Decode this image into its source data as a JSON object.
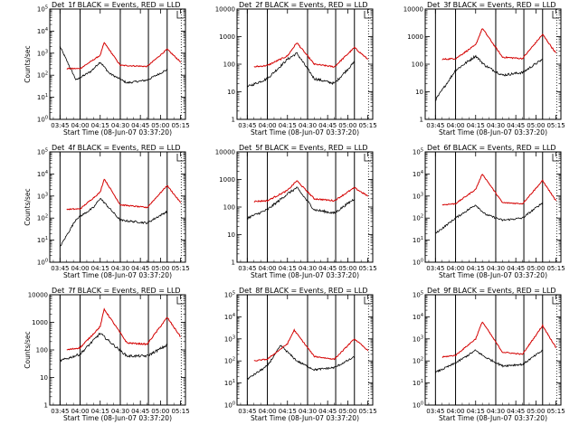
{
  "chart_data": [
    {
      "type": "line",
      "title": "Det_1f BLACK = Events, RED = LLD",
      "xlabel": "Start Time (08-Jun-07 03:37:20)",
      "ylabel": "Counts/sec",
      "y_ticks": [
        "10^0",
        "10^1",
        "10^2",
        "10^3",
        "10^4",
        "10^5"
      ],
      "ylim": [
        1,
        100000
      ],
      "x_ticks": [
        "03:45",
        "04:00",
        "04:15",
        "04:30",
        "04:45",
        "05:00",
        "05:15"
      ],
      "xlim": [
        "03:37:20",
        "05:18:40"
      ],
      "vlines": [
        "03:45",
        "04:00",
        "04:30",
        "04:51",
        "05:05"
      ],
      "y_scale": "log",
      "legend_mark": "top-right",
      "series": [
        {
          "name": "Events",
          "color": "#000000",
          "values": [
            {
              "x": "03:45",
              "y": 2000
            },
            {
              "x": "03:57",
              "y": 60
            },
            {
              "x": "04:08",
              "y": 150
            },
            {
              "x": "04:15",
              "y": 400
            },
            {
              "x": "04:22",
              "y": 120
            },
            {
              "x": "04:35",
              "y": 45
            },
            {
              "x": "04:50",
              "y": 60
            },
            {
              "x": "05:05",
              "y": 180
            }
          ]
        },
        {
          "name": "LLD",
          "color": "#d40000",
          "values": [
            {
              "x": "03:50",
              "y": 200
            },
            {
              "x": "04:00",
              "y": 200
            },
            {
              "x": "04:15",
              "y": 800
            },
            {
              "x": "04:18",
              "y": 3000
            },
            {
              "x": "04:30",
              "y": 280
            },
            {
              "x": "04:50",
              "y": 250
            },
            {
              "x": "05:05",
              "y": 1500
            },
            {
              "x": "05:15",
              "y": 400
            }
          ]
        }
      ]
    },
    {
      "type": "line",
      "title": "Det_2f BLACK = Events, RED = LLD",
      "xlabel": "Start Time (08-Jun-07 03:37:20)",
      "ylabel": "",
      "y_ticks": [
        "1",
        "10",
        "100",
        "1000",
        "10000"
      ],
      "ylim": [
        1,
        10000
      ],
      "x_ticks": [
        "03:45",
        "04:00",
        "04:15",
        "04:30",
        "04:45",
        "05:00",
        "05:15"
      ],
      "xlim": [
        "03:37:20",
        "05:18:40"
      ],
      "vlines": [
        "03:45",
        "04:00",
        "04:30",
        "04:51",
        "05:05"
      ],
      "y_scale": "log",
      "legend_mark": "top-right",
      "series": [
        {
          "name": "Events",
          "color": "#000000",
          "values": [
            {
              "x": "03:45",
              "y": 15
            },
            {
              "x": "04:00",
              "y": 30
            },
            {
              "x": "04:15",
              "y": 150
            },
            {
              "x": "04:22",
              "y": 250
            },
            {
              "x": "04:35",
              "y": 30
            },
            {
              "x": "04:50",
              "y": 20
            },
            {
              "x": "05:05",
              "y": 120
            }
          ]
        },
        {
          "name": "LLD",
          "color": "#d40000",
          "values": [
            {
              "x": "03:50",
              "y": 80
            },
            {
              "x": "04:00",
              "y": 90
            },
            {
              "x": "04:15",
              "y": 200
            },
            {
              "x": "04:22",
              "y": 600
            },
            {
              "x": "04:35",
              "y": 100
            },
            {
              "x": "04:50",
              "y": 80
            },
            {
              "x": "05:05",
              "y": 400
            },
            {
              "x": "05:15",
              "y": 150
            }
          ]
        }
      ]
    },
    {
      "type": "line",
      "title": "Det_3f BLACK = Events, RED = LLD",
      "xlabel": "Start Time (08-Jun-07 03:37:20)",
      "ylabel": "",
      "y_ticks": [
        "1",
        "10",
        "100",
        "1000",
        "10000"
      ],
      "ylim": [
        1,
        10000
      ],
      "x_ticks": [
        "03:45",
        "04:00",
        "04:15",
        "04:30",
        "04:45",
        "05:00",
        "05:15"
      ],
      "xlim": [
        "03:37:20",
        "05:18:40"
      ],
      "vlines": [
        "03:45",
        "04:00",
        "04:30",
        "04:51",
        "05:05"
      ],
      "y_scale": "log",
      "legend_mark": "top-right",
      "series": [
        {
          "name": "Events",
          "color": "#000000",
          "values": [
            {
              "x": "03:45",
              "y": 5
            },
            {
              "x": "04:00",
              "y": 60
            },
            {
              "x": "04:15",
              "y": 200
            },
            {
              "x": "04:22",
              "y": 90
            },
            {
              "x": "04:35",
              "y": 40
            },
            {
              "x": "04:50",
              "y": 50
            },
            {
              "x": "05:05",
              "y": 150
            }
          ]
        },
        {
          "name": "LLD",
          "color": "#d40000",
          "values": [
            {
              "x": "03:50",
              "y": 150
            },
            {
              "x": "04:00",
              "y": 160
            },
            {
              "x": "04:15",
              "y": 500
            },
            {
              "x": "04:20",
              "y": 2000
            },
            {
              "x": "04:35",
              "y": 180
            },
            {
              "x": "04:50",
              "y": 160
            },
            {
              "x": "05:05",
              "y": 1200
            },
            {
              "x": "05:15",
              "y": 250
            }
          ]
        }
      ]
    },
    {
      "type": "line",
      "title": "Det_4f BLACK = Events, RED = LLD",
      "xlabel": "Start Time (08-Jun-07 03:37:20)",
      "ylabel": "Counts/sec",
      "y_ticks": [
        "10^0",
        "10^1",
        "10^2",
        "10^3",
        "10^4",
        "10^5"
      ],
      "ylim": [
        1,
        100000
      ],
      "x_ticks": [
        "03:45",
        "04:00",
        "04:15",
        "04:30",
        "04:45",
        "05:00",
        "05:15"
      ],
      "xlim": [
        "03:37:20",
        "05:18:40"
      ],
      "vlines": [
        "03:45",
        "04:00",
        "04:30",
        "04:51",
        "05:05"
      ],
      "y_scale": "log",
      "legend_mark": "top-right",
      "series": [
        {
          "name": "Events",
          "color": "#000000",
          "values": [
            {
              "x": "03:45",
              "y": 5
            },
            {
              "x": "03:57",
              "y": 90
            },
            {
              "x": "04:10",
              "y": 300
            },
            {
              "x": "04:15",
              "y": 800
            },
            {
              "x": "04:30",
              "y": 80
            },
            {
              "x": "04:50",
              "y": 60
            },
            {
              "x": "05:05",
              "y": 200
            }
          ]
        },
        {
          "name": "LLD",
          "color": "#d40000",
          "values": [
            {
              "x": "03:50",
              "y": 250
            },
            {
              "x": "04:00",
              "y": 260
            },
            {
              "x": "04:15",
              "y": 1500
            },
            {
              "x": "04:18",
              "y": 6000
            },
            {
              "x": "04:30",
              "y": 400
            },
            {
              "x": "04:50",
              "y": 300
            },
            {
              "x": "05:05",
              "y": 3000
            },
            {
              "x": "05:15",
              "y": 500
            }
          ]
        }
      ]
    },
    {
      "type": "line",
      "title": "Det_5f BLACK = Events, RED = LLD",
      "xlabel": "Start Time (08-Jun-07 03:37:20)",
      "ylabel": "",
      "y_ticks": [
        "1",
        "10",
        "100",
        "1000",
        "10000"
      ],
      "ylim": [
        1,
        10000
      ],
      "x_ticks": [
        "03:45",
        "04:00",
        "04:15",
        "04:30",
        "04:45",
        "05:00",
        "05:15"
      ],
      "xlim": [
        "03:37:20",
        "05:18:40"
      ],
      "vlines": [
        "03:45",
        "04:00",
        "04:30",
        "04:51",
        "05:05"
      ],
      "y_scale": "log",
      "legend_mark": "top-right",
      "series": [
        {
          "name": "Events",
          "color": "#000000",
          "values": [
            {
              "x": "03:45",
              "y": 40
            },
            {
              "x": "04:00",
              "y": 80
            },
            {
              "x": "04:15",
              "y": 300
            },
            {
              "x": "04:22",
              "y": 500
            },
            {
              "x": "04:35",
              "y": 80
            },
            {
              "x": "04:50",
              "y": 60
            },
            {
              "x": "05:05",
              "y": 200
            }
          ]
        },
        {
          "name": "LLD",
          "color": "#d40000",
          "values": [
            {
              "x": "03:50",
              "y": 160
            },
            {
              "x": "04:00",
              "y": 170
            },
            {
              "x": "04:15",
              "y": 400
            },
            {
              "x": "04:22",
              "y": 900
            },
            {
              "x": "04:35",
              "y": 200
            },
            {
              "x": "04:50",
              "y": 170
            },
            {
              "x": "05:05",
              "y": 500
            },
            {
              "x": "05:15",
              "y": 250
            }
          ]
        }
      ]
    },
    {
      "type": "line",
      "title": "Det_6f BLACK = Events, RED = LLD",
      "xlabel": "Start Time (08-Jun-07 03:37:20)",
      "ylabel": "",
      "y_ticks": [
        "10^0",
        "10^1",
        "10^2",
        "10^3",
        "10^4",
        "10^5"
      ],
      "ylim": [
        1,
        100000
      ],
      "x_ticks": [
        "03:45",
        "04:00",
        "04:15",
        "04:30",
        "04:45",
        "05:00",
        "05:15"
      ],
      "xlim": [
        "03:37:20",
        "05:18:40"
      ],
      "vlines": [
        "03:45",
        "04:00",
        "04:30",
        "04:51",
        "05:05"
      ],
      "y_scale": "log",
      "legend_mark": "top-right",
      "series": [
        {
          "name": "Events",
          "color": "#000000",
          "values": [
            {
              "x": "03:45",
              "y": 20
            },
            {
              "x": "04:00",
              "y": 100
            },
            {
              "x": "04:15",
              "y": 400
            },
            {
              "x": "04:22",
              "y": 150
            },
            {
              "x": "04:35",
              "y": 80
            },
            {
              "x": "04:50",
              "y": 100
            },
            {
              "x": "05:05",
              "y": 500
            }
          ]
        },
        {
          "name": "LLD",
          "color": "#d40000",
          "values": [
            {
              "x": "03:50",
              "y": 400
            },
            {
              "x": "04:00",
              "y": 450
            },
            {
              "x": "04:15",
              "y": 2000
            },
            {
              "x": "04:20",
              "y": 10000
            },
            {
              "x": "04:35",
              "y": 500
            },
            {
              "x": "04:50",
              "y": 450
            },
            {
              "x": "05:05",
              "y": 5000
            },
            {
              "x": "05:15",
              "y": 600
            }
          ]
        }
      ]
    },
    {
      "type": "line",
      "title": "Det_7f BLACK = Events, RED = LLD",
      "xlabel": "Start Time (08-Jun-07 03:37:20)",
      "ylabel": "Counts/sec",
      "y_ticks": [
        "1",
        "10",
        "100",
        "1000",
        "10000"
      ],
      "ylim": [
        1,
        10000
      ],
      "x_ticks": [
        "03:45",
        "04:00",
        "04:15",
        "04:30",
        "04:45",
        "05:00",
        "05:15"
      ],
      "xlim": [
        "03:37:20",
        "05:18:40"
      ],
      "vlines": [
        "03:45",
        "04:00",
        "04:30",
        "04:51",
        "05:05"
      ],
      "y_scale": "log",
      "legend_mark": "top-right",
      "series": [
        {
          "name": "Events",
          "color": "#000000",
          "values": [
            {
              "x": "03:45",
              "y": 40
            },
            {
              "x": "04:00",
              "y": 70
            },
            {
              "x": "04:15",
              "y": 400
            },
            {
              "x": "04:22",
              "y": 200
            },
            {
              "x": "04:35",
              "y": 60
            },
            {
              "x": "04:50",
              "y": 60
            },
            {
              "x": "05:05",
              "y": 150
            }
          ]
        },
        {
          "name": "LLD",
          "color": "#d40000",
          "values": [
            {
              "x": "03:50",
              "y": 100
            },
            {
              "x": "04:00",
              "y": 120
            },
            {
              "x": "04:15",
              "y": 700
            },
            {
              "x": "04:18",
              "y": 3000
            },
            {
              "x": "04:35",
              "y": 180
            },
            {
              "x": "04:50",
              "y": 160
            },
            {
              "x": "05:05",
              "y": 1500
            },
            {
              "x": "05:15",
              "y": 300
            }
          ]
        }
      ]
    },
    {
      "type": "line",
      "title": "Det_8f BLACK = Events, RED = LLD",
      "xlabel": "Start Time (08-Jun-07 03:37:20)",
      "ylabel": "",
      "y_ticks": [
        "10^0",
        "10^1",
        "10^2",
        "10^3",
        "10^4",
        "10^5"
      ],
      "ylim": [
        1,
        100000
      ],
      "x_ticks": [
        "03:45",
        "04:00",
        "04:15",
        "04:30",
        "04:45",
        "05:00",
        "05:15"
      ],
      "xlim": [
        "03:37:20",
        "05:18:40"
      ],
      "vlines": [
        "03:45",
        "04:00",
        "04:30",
        "04:51",
        "05:05"
      ],
      "y_scale": "log",
      "legend_mark": "top-right",
      "series": [
        {
          "name": "Events",
          "color": "#000000",
          "values": [
            {
              "x": "03:45",
              "y": 15
            },
            {
              "x": "04:00",
              "y": 60
            },
            {
              "x": "04:10",
              "y": 500
            },
            {
              "x": "04:22",
              "y": 100
            },
            {
              "x": "04:35",
              "y": 40
            },
            {
              "x": "04:50",
              "y": 50
            },
            {
              "x": "05:05",
              "y": 150
            }
          ]
        },
        {
          "name": "LLD",
          "color": "#d40000",
          "values": [
            {
              "x": "03:50",
              "y": 100
            },
            {
              "x": "04:00",
              "y": 120
            },
            {
              "x": "04:15",
              "y": 600
            },
            {
              "x": "04:20",
              "y": 2500
            },
            {
              "x": "04:35",
              "y": 160
            },
            {
              "x": "04:50",
              "y": 120
            },
            {
              "x": "05:05",
              "y": 1000
            },
            {
              "x": "05:15",
              "y": 300
            }
          ]
        }
      ]
    },
    {
      "type": "line",
      "title": "Det_9f BLACK = Events, RED = LLD",
      "xlabel": "Start Time (08-Jun-07 03:37:20)",
      "ylabel": "",
      "y_ticks": [
        "10^0",
        "10^1",
        "10^2",
        "10^3",
        "10^4",
        "10^5"
      ],
      "ylim": [
        1,
        100000
      ],
      "x_ticks": [
        "03:45",
        "04:00",
        "04:15",
        "04:30",
        "04:45",
        "05:00",
        "05:15"
      ],
      "xlim": [
        "03:37:20",
        "05:18:40"
      ],
      "vlines": [
        "03:45",
        "04:00",
        "04:30",
        "04:51",
        "05:05"
      ],
      "y_scale": "log",
      "legend_mark": "top-right",
      "series": [
        {
          "name": "Events",
          "color": "#000000",
          "values": [
            {
              "x": "03:45",
              "y": 30
            },
            {
              "x": "04:00",
              "y": 80
            },
            {
              "x": "04:15",
              "y": 300
            },
            {
              "x": "04:22",
              "y": 150
            },
            {
              "x": "04:35",
              "y": 60
            },
            {
              "x": "04:50",
              "y": 70
            },
            {
              "x": "05:05",
              "y": 300
            }
          ]
        },
        {
          "name": "LLD",
          "color": "#d40000",
          "values": [
            {
              "x": "03:50",
              "y": 150
            },
            {
              "x": "04:00",
              "y": 180
            },
            {
              "x": "04:15",
              "y": 1000
            },
            {
              "x": "04:20",
              "y": 6000
            },
            {
              "x": "04:35",
              "y": 250
            },
            {
              "x": "04:50",
              "y": 200
            },
            {
              "x": "05:05",
              "y": 4000
            },
            {
              "x": "05:15",
              "y": 400
            }
          ]
        }
      ]
    }
  ]
}
